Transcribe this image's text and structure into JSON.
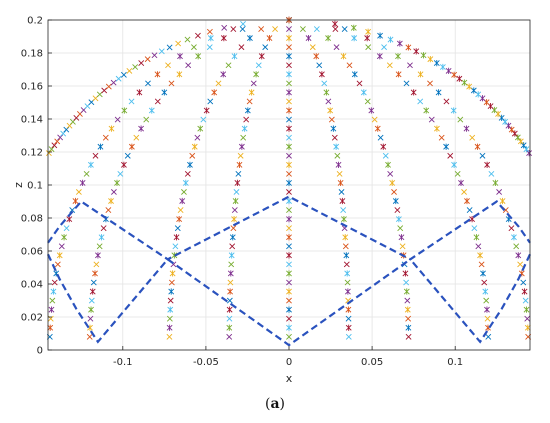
{
  "caption": {
    "open": "(",
    "letter": "a",
    "close": ")"
  },
  "chart_data": {
    "type": "scatter",
    "xlabel": "x",
    "ylabel": "z",
    "xlim": [
      -0.145,
      0.145
    ],
    "ylim": [
      0,
      0.2
    ],
    "xticks": [
      -0.1,
      -0.05,
      0,
      0.05,
      0.1
    ],
    "xtick_labels": [
      "-0.1",
      "-0.05",
      "0",
      "0.05",
      "0.1"
    ],
    "yticks": [
      0,
      0.02,
      0.04,
      0.06,
      0.08,
      0.1,
      0.12,
      0.14,
      0.16,
      0.18,
      0.2
    ],
    "ytick_labels": [
      "0",
      "0.02",
      "0.04",
      "0.06",
      "0.08",
      "0.1",
      "0.12",
      "0.14",
      "0.16",
      "0.18",
      "0.2"
    ],
    "grid": true,
    "marker_colors": [
      "#0072bd",
      "#d95319",
      "#edb120",
      "#7e2f8e",
      "#77ac30",
      "#4dbeee",
      "#a2142f"
    ],
    "meridians": {
      "description": "points on spherical cap z = sqrt(r^2 - x^2 - y^2), r = 0.2, plotted in x-z projection",
      "radius": 0.2,
      "x_over_r": [
        -0.72,
        -0.6,
        -0.36,
        -0.18,
        0,
        0.18,
        0.36,
        0.6,
        0.72
      ],
      "z_min": 0.008,
      "z_max": 0.2,
      "points_per_meridian": 36
    },
    "dashed_boundary": {
      "color": "#2a52be",
      "points": [
        [
          -0.145,
          0.065
        ],
        [
          -0.138,
          0.075
        ],
        [
          -0.125,
          0.09
        ],
        [
          -0.073,
          0.055
        ],
        [
          -0.0,
          0.093
        ],
        [
          0.073,
          0.055
        ],
        [
          0.125,
          0.09
        ],
        [
          0.138,
          0.075
        ],
        [
          0.145,
          0.065
        ]
      ],
      "lower_points": [
        [
          -0.145,
          0.058
        ],
        [
          -0.138,
          0.043
        ],
        [
          -0.128,
          0.025
        ],
        [
          -0.115,
          0.005
        ],
        [
          -0.073,
          0.055
        ]
      ],
      "lower_points_right": [
        [
          0.145,
          0.058
        ],
        [
          0.138,
          0.043
        ],
        [
          0.128,
          0.025
        ],
        [
          0.115,
          0.005
        ],
        [
          0.073,
          0.055
        ]
      ],
      "center_points": [
        [
          -0.073,
          0.055
        ],
        [
          0.0,
          0.003
        ],
        [
          0.073,
          0.055
        ]
      ]
    }
  }
}
